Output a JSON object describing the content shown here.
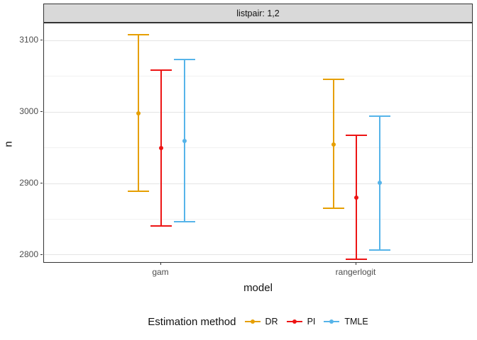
{
  "facet": {
    "label": "listpair: 1,2"
  },
  "chart_data": {
    "type": "pointrange",
    "title": "",
    "xlabel": "model",
    "ylabel": "n",
    "categories": [
      "gam",
      "rangerlogit"
    ],
    "y_ticks": [
      2800,
      2900,
      3000,
      3100
    ],
    "y_minor_ticks": [
      2850,
      2950,
      3050
    ],
    "ylim": [
      2788,
      3124
    ],
    "grid": true,
    "legend": {
      "title": "Estimation method",
      "position": "bottom"
    },
    "series": [
      {
        "name": "DR",
        "color": "#E69F00",
        "points": [
          {
            "x": "gam",
            "y": 2998,
            "ymin": 2889,
            "ymax": 3108
          },
          {
            "x": "rangerlogit",
            "y": 2955,
            "ymin": 2865,
            "ymax": 3046
          }
        ]
      },
      {
        "name": "PI",
        "color": "#ED1414",
        "points": [
          {
            "x": "gam",
            "y": 2950,
            "ymin": 2841,
            "ymax": 3059
          },
          {
            "x": "rangerlogit",
            "y": 2880,
            "ymin": 2794,
            "ymax": 2967
          }
        ]
      },
      {
        "name": "TMLE",
        "color": "#56B4E9",
        "points": [
          {
            "x": "gam",
            "y": 2959,
            "ymin": 2846,
            "ymax": 3073
          },
          {
            "x": "rangerlogit",
            "y": 2901,
            "ymin": 2807,
            "ymax": 2994
          }
        ]
      }
    ]
  },
  "colors": {
    "strip_fill": "#D9D9D9",
    "panel_border": "#333333",
    "grid_major": "#E4E4E4",
    "grid_minor": "#F1F1F1",
    "axis_text": "#4D4D4D"
  }
}
